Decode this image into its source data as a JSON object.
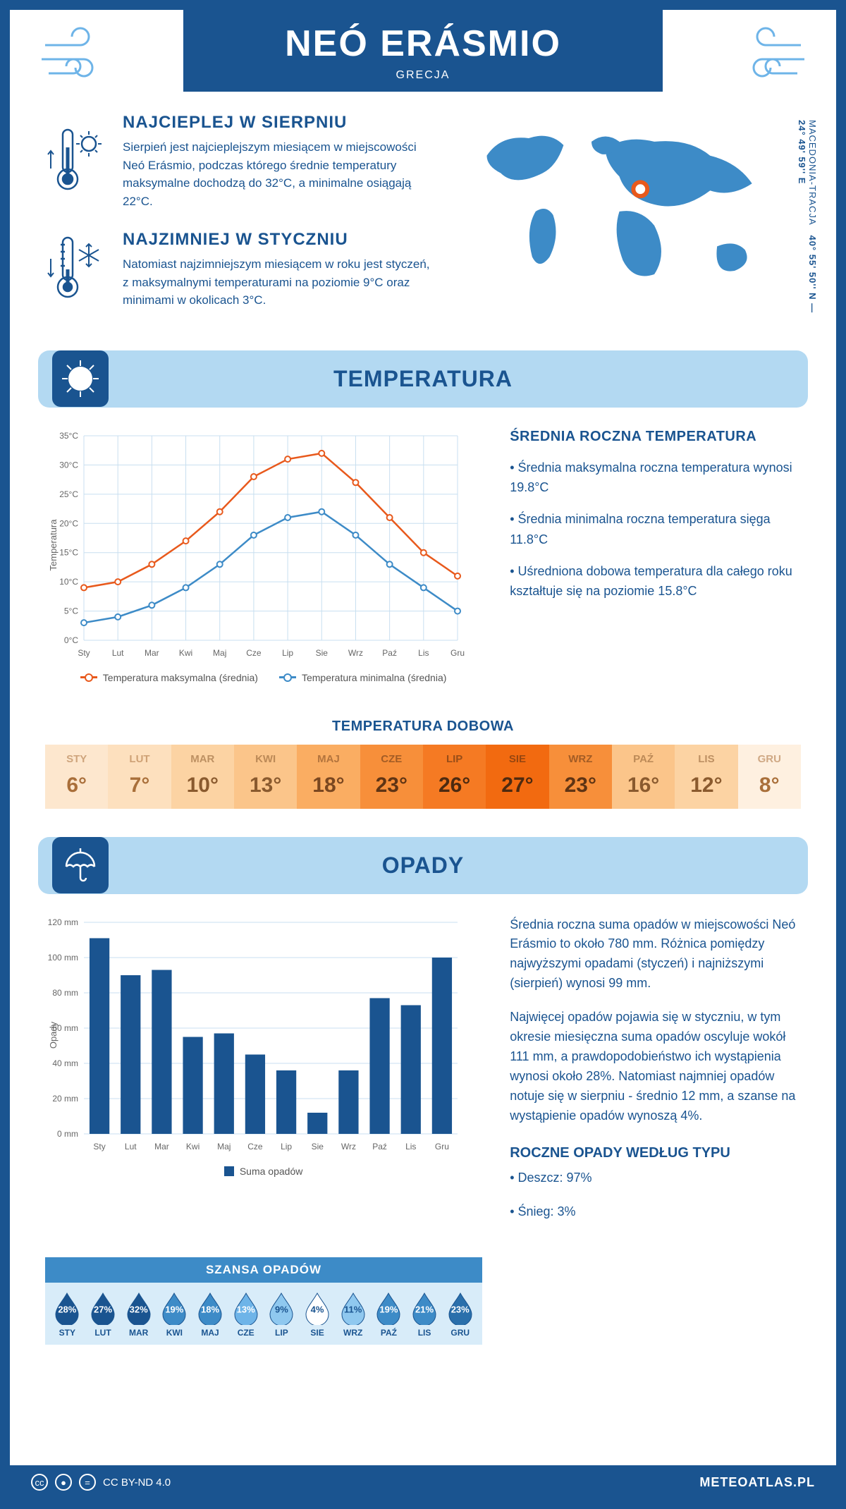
{
  "header": {
    "title": "NEÓ ERÁSMIO",
    "subtitle": "GRECJA"
  },
  "intro": {
    "warm": {
      "title": "NAJCIEPLEJ W SIERPNIU",
      "text": "Sierpień jest najcieplejszym miesiącem w miejscowości Neó Erásmio, podczas którego średnie temperatury maksymalne dochodzą do 32°C, a minimalne osiągają 22°C."
    },
    "cold": {
      "title": "NAJZIMNIEJ W STYCZNIU",
      "text": "Natomiast najzimniejszym miesiącem w roku jest styczeń, z maksymalnymi temperaturami na poziomie 9°C oraz minimami w okolicach 3°C."
    },
    "coords": "40° 55' 50'' N — 24° 49' 59'' E",
    "region": "MACEDONIA-TRACJA"
  },
  "sections": {
    "temperature": "TEMPERATURA",
    "precip": "OPADY"
  },
  "temp_chart": {
    "type": "line",
    "ylabel": "Temperatura",
    "months": [
      "Sty",
      "Lut",
      "Mar",
      "Kwi",
      "Maj",
      "Cze",
      "Lip",
      "Sie",
      "Wrz",
      "Paź",
      "Lis",
      "Gru"
    ],
    "max_series": [
      9,
      10,
      13,
      17,
      22,
      28,
      31,
      32,
      27,
      21,
      15,
      11
    ],
    "min_series": [
      3,
      4,
      6,
      9,
      13,
      18,
      21,
      22,
      18,
      13,
      9,
      5
    ],
    "max_color": "#e8591c",
    "min_color": "#3d8bc7",
    "grid_color": "#c8dff0",
    "ylim": [
      0,
      35
    ],
    "ytick_step": 5,
    "legend_max": "Temperatura maksymalna (średnia)",
    "legend_min": "Temperatura minimalna (średnia)"
  },
  "annual": {
    "title": "ŚREDNIA ROCZNA TEMPERATURA",
    "b1": "• Średnia maksymalna roczna temperatura wynosi 19.8°C",
    "b2": "• Średnia minimalna roczna temperatura sięga 11.8°C",
    "b3": "• Uśredniona dobowa temperatura dla całego roku kształtuje się na poziomie 15.8°C"
  },
  "daily": {
    "title": "TEMPERATURA DOBOWA",
    "months": [
      "STY",
      "LUT",
      "MAR",
      "KWI",
      "MAJ",
      "CZE",
      "LIP",
      "SIE",
      "WRZ",
      "PAŹ",
      "LIS",
      "GRU"
    ],
    "values": [
      "6°",
      "7°",
      "10°",
      "13°",
      "18°",
      "23°",
      "26°",
      "27°",
      "23°",
      "16°",
      "12°",
      "8°"
    ],
    "bg_colors": [
      "#fde7ce",
      "#fde0be",
      "#fcd3a3",
      "#fbc58a",
      "#faad62",
      "#f78f3a",
      "#f57a23",
      "#f26a10",
      "#f78f3a",
      "#fbc58a",
      "#fcd3a3",
      "#fef0e0"
    ],
    "text_colors": [
      "#a96f3a",
      "#a96f3a",
      "#8a5a2e",
      "#8a5a2e",
      "#7a4720",
      "#5f3414",
      "#4d2a10",
      "#4d2a10",
      "#5f3414",
      "#8a5a2e",
      "#8a5a2e",
      "#a96f3a"
    ]
  },
  "precip_chart": {
    "type": "bar",
    "ylabel": "Opady",
    "months": [
      "Sty",
      "Lut",
      "Mar",
      "Kwi",
      "Maj",
      "Cze",
      "Lip",
      "Sie",
      "Wrz",
      "Paź",
      "Lis",
      "Gru"
    ],
    "values": [
      111,
      90,
      93,
      55,
      57,
      45,
      36,
      12,
      36,
      77,
      73,
      100
    ],
    "bar_color": "#1a5490",
    "grid_color": "#c8dff0",
    "ylim": [
      0,
      120
    ],
    "ytick_step": 20,
    "legend": "Suma opadów"
  },
  "precip_text": {
    "p1": "Średnia roczna suma opadów w miejscowości Neó Erásmio to około 780 mm. Różnica pomiędzy najwyższymi opadami (styczeń) i najniższymi (sierpień) wynosi 99 mm.",
    "p2": "Najwięcej opadów pojawia się w styczniu, w tym okresie miesięczna suma opadów oscyluje wokół 111 mm, a prawdopodobieństwo ich wystąpienia wynosi około 28%. Natomiast najmniej opadów notuje się w sierpniu - średnio 12 mm, a szanse na wystąpienie opadów wynoszą 4%.",
    "type_title": "ROCZNE OPADY WEDŁUG TYPU",
    "type_1": "• Deszcz: 97%",
    "type_2": "• Śnieg: 3%"
  },
  "chance": {
    "title": "SZANSA OPADÓW",
    "months": [
      "STY",
      "LUT",
      "MAR",
      "KWI",
      "MAJ",
      "CZE",
      "LIP",
      "SIE",
      "WRZ",
      "PAŹ",
      "LIS",
      "GRU"
    ],
    "values": [
      "28%",
      "27%",
      "32%",
      "19%",
      "18%",
      "13%",
      "9%",
      "4%",
      "11%",
      "19%",
      "21%",
      "23%"
    ],
    "fill_colors": [
      "#1a5490",
      "#1a5490",
      "#1a5490",
      "#3d8bc7",
      "#3d8bc7",
      "#6eb4e8",
      "#8fc8ef",
      "#ffffff",
      "#8fc8ef",
      "#3d8bc7",
      "#3d8bc7",
      "#2a6fab"
    ],
    "text_colors": [
      "#ffffff",
      "#ffffff",
      "#ffffff",
      "#ffffff",
      "#ffffff",
      "#ffffff",
      "#1a5490",
      "#1a5490",
      "#1a5490",
      "#ffffff",
      "#ffffff",
      "#ffffff"
    ]
  },
  "footer": {
    "license": "CC BY-ND 4.0",
    "site": "METEOATLAS.PL"
  },
  "colors": {
    "primary": "#1a5490",
    "light": "#b3d9f2",
    "accent": "#e8591c"
  }
}
